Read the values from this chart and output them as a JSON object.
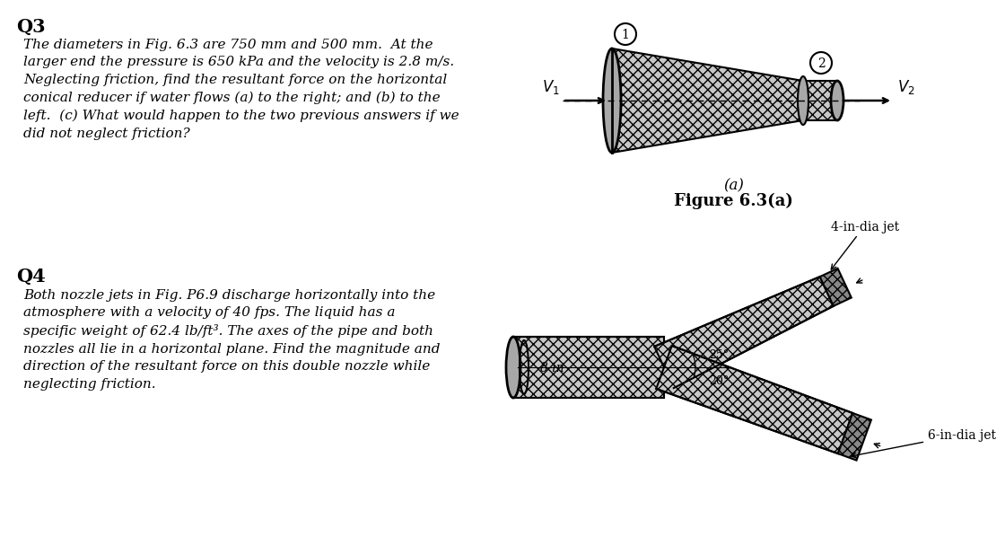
{
  "bg_color": "#ffffff",
  "q3_label": "Q3",
  "q3_text": "The diameters in Fig. 6.3 are 750 mm and 500 mm.  At the\nlarger end the pressure is 650 kPa and the velocity is 2.8 m/s.\nNeglecting friction, find the resultant force on the horizontal\nconical reducer if water flows (a) to the right; and (b) to the\nleft.  (c) What would happen to the two previous answers if we\ndid not neglect friction?",
  "q4_label": "Q4",
  "q4_text": "Both nozzle jets in Fig. P6.9 discharge horizontally into the\natmosphere with a velocity of 40 fps. The liquid has a\nspecific weight of 62.4 lb/ft³. The axes of the pipe and both\nnozzles all lie in a horizontal plane. Find the magnitude and\ndirection of the resultant force on this double nozzle while\nneglecting friction.",
  "fig_a_label": "(a)",
  "fig_a_caption": "Figure 6.3(a)",
  "v1_label": "V1",
  "v2_label": "V2",
  "circle1_label": "1",
  "circle2_label": "2",
  "nozzle_label_4in": "4-in-dia jet",
  "nozzle_label_6in": "6-in-dia jet",
  "pipe_label_8in": "8 in",
  "angle1_label": "25°",
  "angle2_label": "20°",
  "cone_hatch": "xxx",
  "gray_light": "#c8c8c8",
  "gray_mid": "#a8a8a8",
  "gray_dark": "#888888"
}
